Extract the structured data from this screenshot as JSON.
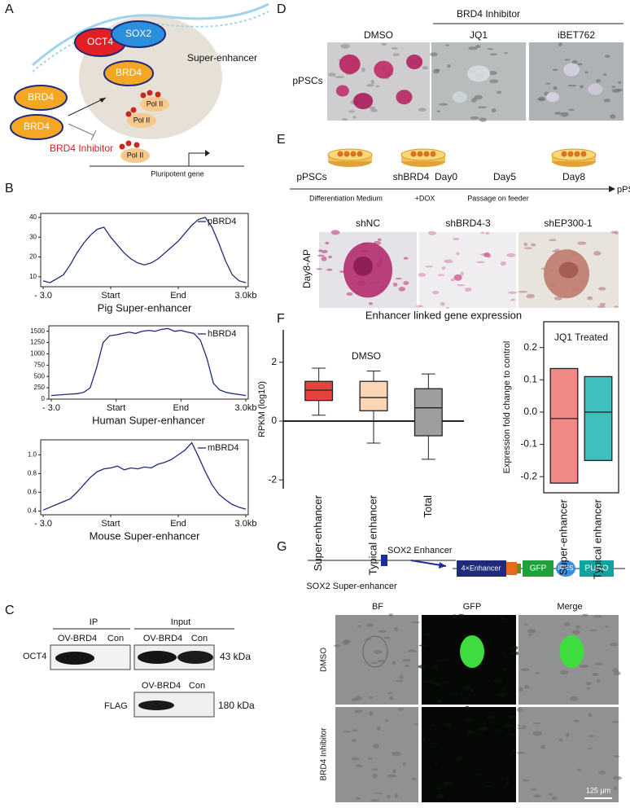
{
  "panel_labels": [
    "A",
    "B",
    "C",
    "D",
    "E",
    "F",
    "G"
  ],
  "panel_a": {
    "factors": [
      "OCT4",
      "SOX2",
      "BRD4"
    ],
    "region": "Super-enhancer",
    "free_brd4": [
      "BRD4",
      "BRD4"
    ],
    "polymerase": [
      "Pol II",
      "Pol II",
      "Pol II"
    ],
    "inhibitor": "BRD4 Inhibitor",
    "gene": "Pluripotent gene"
  },
  "panel_d": {
    "group": "BRD4 Inhibitor",
    "columns": [
      "DMSO",
      "JQ1",
      "iBET762"
    ],
    "row": "pPSCs"
  },
  "panel_e": {
    "stages": [
      "pPSCs",
      "shBRD4",
      "Day0",
      "Day5",
      "Day8"
    ],
    "end": "pPSCs",
    "steps": [
      "Differentiation Medium",
      "+DOX",
      "Passage on feeder"
    ],
    "columns": [
      "shNC",
      "shBRD4-3",
      "shEP300-1"
    ],
    "row": "Day8-AP"
  },
  "panel_f": {
    "title": "Enhancer linked gene expression"
  },
  "panel_c": {
    "ip": "IP",
    "input": "Input",
    "lanes": [
      "OV-BRD4",
      "Con",
      "OV-BRD4",
      "Con"
    ],
    "blots": [
      {
        "label": "OCT4",
        "size": "43 kDa"
      },
      {
        "label": "FLAG",
        "size": "180 kDa"
      }
    ],
    "flag_lanes": [
      "OV-BRD4",
      "Con"
    ]
  },
  "panel_g": {
    "enhancer": "SOX2 Enhancer",
    "super": "SOX2 Super-enhancer",
    "construct": [
      "4×Enhancer",
      "GFP",
      "IRES",
      "PURO"
    ],
    "columns": [
      "BF",
      "GFP",
      "Merge"
    ],
    "rows": [
      "DMSO",
      "BRD4 Inhibitor"
    ],
    "scale": "125 µm"
  },
  "chart_data": [
    {
      "type": "line",
      "xlabel": "Pig Super-enhancer",
      "x": [
        0,
        2,
        4,
        6,
        8,
        10,
        12,
        14,
        16,
        18,
        20,
        22,
        24,
        26,
        28,
        30,
        32,
        34,
        36,
        38,
        40,
        42,
        44,
        46,
        48,
        50,
        52,
        54,
        56,
        58,
        60
      ],
      "xlim": [
        0,
        60
      ],
      "xticks": [
        {
          "value": 0,
          "label": "- 3.0"
        },
        {
          "value": 20,
          "label": "Start"
        },
        {
          "value": 40,
          "label": "End"
        },
        {
          "value": 60,
          "label": "3.0kb"
        }
      ],
      "ylim": [
        5,
        42
      ],
      "yticks": [
        10,
        20,
        30,
        40
      ],
      "series": [
        {
          "name": "pBRD4",
          "color": "#1f2a7a",
          "values": [
            8,
            7,
            9,
            11,
            16,
            22,
            27,
            31,
            34,
            35,
            30,
            26,
            22,
            19,
            17,
            16,
            17,
            19,
            22,
            25,
            28,
            32,
            36,
            39,
            40,
            35,
            27,
            18,
            11,
            8,
            7
          ]
        }
      ]
    },
    {
      "type": "line",
      "xlabel": "Human Super-enhancer",
      "x": [
        0,
        2,
        4,
        6,
        8,
        10,
        12,
        14,
        16,
        18,
        20,
        22,
        24,
        26,
        28,
        30,
        32,
        34,
        36,
        38,
        40,
        42,
        44,
        46,
        48,
        50,
        52,
        54,
        56,
        58,
        60
      ],
      "xlim": [
        0,
        60
      ],
      "xticks": [
        {
          "value": 0,
          "label": "- 3.0"
        },
        {
          "value": 20,
          "label": "Start"
        },
        {
          "value": 40,
          "label": "End"
        },
        {
          "value": 60,
          "label": "3.0kb"
        }
      ],
      "ylim": [
        0,
        1620
      ],
      "yticks": [
        0,
        250,
        500,
        750,
        1000,
        1250,
        1500
      ],
      "series": [
        {
          "name": "hBRD4",
          "color": "#1f2a7a",
          "values": [
            80,
            90,
            100,
            110,
            120,
            150,
            250,
            700,
            1250,
            1400,
            1420,
            1450,
            1480,
            1450,
            1500,
            1520,
            1500,
            1540,
            1560,
            1500,
            1520,
            1480,
            1450,
            1300,
            900,
            350,
            200,
            150,
            120,
            100,
            80
          ]
        }
      ]
    },
    {
      "type": "line",
      "xlabel": "Mouse Super-enhancer",
      "x": [
        0,
        2,
        4,
        6,
        8,
        10,
        12,
        14,
        16,
        18,
        20,
        22,
        24,
        26,
        28,
        30,
        32,
        34,
        36,
        38,
        40,
        42,
        44,
        46,
        48,
        50,
        52,
        54,
        56,
        58,
        60
      ],
      "xlim": [
        0,
        60
      ],
      "xticks": [
        {
          "value": 0,
          "label": "- 3.0"
        },
        {
          "value": 20,
          "label": "Start"
        },
        {
          "value": 40,
          "label": "End"
        },
        {
          "value": 60,
          "label": "3.0kb"
        }
      ],
      "ylim": [
        0.36,
        1.16
      ],
      "yticks": [
        0.4,
        0.6,
        0.8,
        {
          "value": 1,
          "label": "1.0"
        }
      ],
      "series": [
        {
          "name": "mBRD4",
          "color": "#1f2a7a",
          "values": [
            0.41,
            0.44,
            0.47,
            0.5,
            0.53,
            0.6,
            0.68,
            0.76,
            0.82,
            0.85,
            0.86,
            0.88,
            0.84,
            0.86,
            0.85,
            0.87,
            0.86,
            0.9,
            0.92,
            0.95,
            1.0,
            1.05,
            1.13,
            0.98,
            0.82,
            0.68,
            0.58,
            0.52,
            0.47,
            0.44,
            0.42
          ]
        }
      ]
    },
    {
      "type": "box",
      "subtitle": "DMSO",
      "ylabel": "RPKM (log10)",
      "ylim": [
        -2.3,
        3.1
      ],
      "yticks": [
        -2,
        0,
        2
      ],
      "categories": [
        "Super-enhancer",
        "Typical enhancer",
        "Total"
      ],
      "colors": [
        "#e8423f",
        "#fcd5b5",
        "#9e9e9e"
      ],
      "whislo": [
        0.2,
        -0.75,
        -1.3
      ],
      "q1": [
        0.7,
        0.35,
        -0.5
      ],
      "median": [
        1.05,
        0.8,
        0.45
      ],
      "q3": [
        1.35,
        1.35,
        1.1
      ],
      "whishi": [
        1.8,
        1.7,
        1.6
      ]
    },
    {
      "type": "range",
      "subtitle": "JQ1 Treated",
      "ylabel": "Expression fold change to control",
      "ylim": [
        -0.25,
        0.28
      ],
      "yticks": [
        -0.2,
        -0.1,
        {
          "value": 0,
          "label": "0.0"
        },
        0.1,
        0.2
      ],
      "categories": [
        "Super-enhancer",
        "Typical enhancer"
      ],
      "colors": [
        "#f08a86",
        "#3fbfbf"
      ],
      "low": [
        -0.22,
        -0.15
      ],
      "median": [
        -0.02,
        0
      ],
      "high": [
        0.135,
        0.11
      ]
    }
  ]
}
